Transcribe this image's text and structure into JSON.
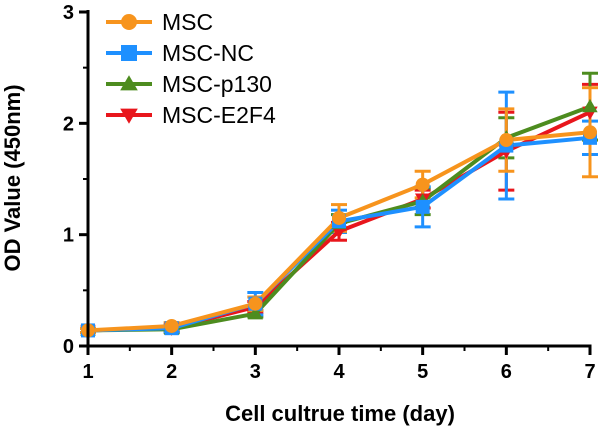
{
  "chart_data": {
    "type": "line",
    "title": "",
    "xlabel": "Cell cultrue time (day)",
    "ylabel": "OD Value (450nm)",
    "xlim": [
      1,
      7
    ],
    "ylim": [
      0,
      3
    ],
    "x_ticks": [
      "1",
      "2",
      "3",
      "4",
      "5",
      "6",
      "7"
    ],
    "y_ticks": [
      "0",
      "1",
      "2",
      "3"
    ],
    "grid": false,
    "legend_position": "top-left",
    "x": [
      1,
      2,
      3,
      4,
      5,
      6,
      7
    ],
    "series": [
      {
        "name": "MSC",
        "color": "#F7941D",
        "marker": "circle",
        "values": [
          0.14,
          0.18,
          0.38,
          1.15,
          1.45,
          1.85,
          1.92
        ],
        "errors": [
          0.02,
          0.03,
          0.06,
          0.12,
          0.12,
          0.28,
          0.4
        ]
      },
      {
        "name": "MSC-NC",
        "color": "#1E90FF",
        "marker": "square",
        "values": [
          0.14,
          0.16,
          0.38,
          1.12,
          1.25,
          1.8,
          1.87
        ],
        "errors": [
          0.02,
          0.03,
          0.1,
          0.1,
          0.18,
          0.48,
          0.15
        ]
      },
      {
        "name": "MSC-p130",
        "color": "#4D8C1F",
        "marker": "triangle-up",
        "values": [
          0.14,
          0.15,
          0.29,
          1.1,
          1.3,
          1.87,
          2.15
        ],
        "errors": [
          0.02,
          0.03,
          0.03,
          0.08,
          0.12,
          0.18,
          0.3
        ]
      },
      {
        "name": "MSC-E2F4",
        "color": "#E8161C",
        "marker": "triangle-down",
        "values": [
          0.14,
          0.16,
          0.35,
          1.03,
          1.32,
          1.75,
          2.1
        ],
        "errors": [
          0.02,
          0.03,
          0.05,
          0.08,
          0.08,
          0.35,
          0.25
        ]
      }
    ]
  }
}
